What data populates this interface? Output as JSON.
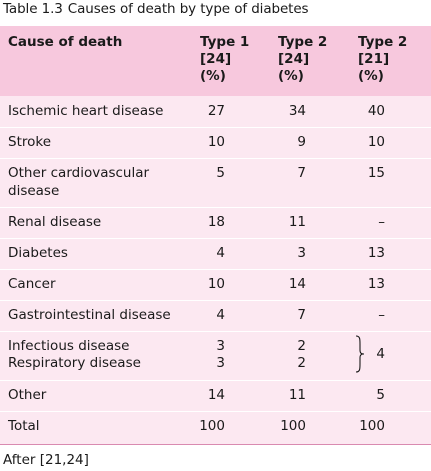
{
  "caption": {
    "label": "Table 1.3",
    "title": "Causes of death by type of diabetes"
  },
  "header": {
    "col0": "Cause of death",
    "col1": [
      "Type 1",
      "[24]",
      "(%)"
    ],
    "col2": [
      "Type 2",
      "[24]",
      "(%)"
    ],
    "col3": [
      "Type 2",
      "[21]",
      "(%)"
    ]
  },
  "rows": [
    {
      "label": "Ischemic heart disease",
      "t1": "27",
      "t2a": "34",
      "t2b": "40"
    },
    {
      "label": "Stroke",
      "t1": "10",
      "t2a": "9",
      "t2b": "10"
    },
    {
      "label_lines": [
        "Other cardiovascular",
        "disease"
      ],
      "t1": "5",
      "t2a": "7",
      "t2b": "15"
    },
    {
      "label": "Renal disease",
      "t1": "18",
      "t2a": "11",
      "t2b": "–"
    },
    {
      "label": "Diabetes",
      "t1": "4",
      "t2a": "3",
      "t2b": "13"
    },
    {
      "label": "Cancer",
      "t1": "10",
      "t2a": "14",
      "t2b": "13"
    },
    {
      "label": "Gastrointestinal disease",
      "t1": "4",
      "t2a": "7",
      "t2b": "–"
    },
    {
      "label_lines": [
        "Infectious disease",
        "Respiratory disease"
      ],
      "t1_lines": [
        "3",
        "3"
      ],
      "t2a_lines": [
        "2",
        "2"
      ],
      "t2b": "4"
    },
    {
      "label": "Other",
      "t1": "14",
      "t2a": "11",
      "t2b": "5"
    },
    {
      "label": "Total",
      "t1": "100",
      "t2a": "100",
      "t2b": "100"
    }
  ],
  "source": "After [21,24]"
}
